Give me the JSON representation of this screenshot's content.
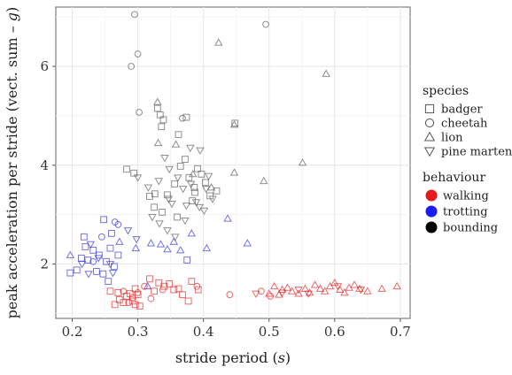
{
  "chart_data": {
    "type": "scatter",
    "xlabel_main": "stride period (",
    "xlabel_var": "s",
    "xlabel_end": ")",
    "ylabel_main": "peak acceleration per stride (vect. sum – ",
    "ylabel_var": "g",
    "ylabel_end": ")",
    "xlim": [
      0.175,
      0.715
    ],
    "ylim": [
      0.9,
      7.2
    ],
    "x_ticks": [
      0.2,
      0.3,
      0.4,
      0.5,
      0.6,
      0.7
    ],
    "x_tick_labels": [
      "0.2",
      "0.3",
      "0.4",
      "0.5",
      "0.6",
      "0.7"
    ],
    "y_ticks": [
      2,
      4,
      6
    ],
    "y_tick_labels": [
      "2",
      "4",
      "6"
    ],
    "grid": true,
    "legend_placement": "right",
    "legend": {
      "species_title": "species",
      "species": [
        {
          "name": "badger",
          "shape": "square"
        },
        {
          "name": "cheetah",
          "shape": "circle"
        },
        {
          "name": "lion",
          "shape": "triangle-up"
        },
        {
          "name": "pine marten",
          "shape": "triangle-down"
        }
      ],
      "behaviour_title": "behaviour",
      "behaviours": [
        {
          "name": "walking",
          "color": "#e41a1c"
        },
        {
          "name": "trotting",
          "color": "#1a1aff"
        },
        {
          "name": "bounding",
          "color": "#000000"
        }
      ]
    },
    "colors": {
      "walking": "#e41a1c",
      "trotting": "#2a2ad8",
      "bounding": "#555555"
    },
    "points": [
      {
        "x": 0.295,
        "y": 7.05,
        "s": "cheetah",
        "b": "bounding"
      },
      {
        "x": 0.3,
        "y": 6.25,
        "s": "cheetah",
        "b": "bounding"
      },
      {
        "x": 0.29,
        "y": 6.0,
        "s": "cheetah",
        "b": "bounding"
      },
      {
        "x": 0.302,
        "y": 5.07,
        "s": "cheetah",
        "b": "bounding"
      },
      {
        "x": 0.495,
        "y": 6.85,
        "s": "cheetah",
        "b": "bounding"
      },
      {
        "x": 0.368,
        "y": 4.95,
        "s": "cheetah",
        "b": "bounding"
      },
      {
        "x": 0.423,
        "y": 6.48,
        "s": "lion",
        "b": "bounding"
      },
      {
        "x": 0.587,
        "y": 5.85,
        "s": "lion",
        "b": "bounding"
      },
      {
        "x": 0.33,
        "y": 5.28,
        "s": "lion",
        "b": "bounding"
      },
      {
        "x": 0.331,
        "y": 4.45,
        "s": "lion",
        "b": "bounding"
      },
      {
        "x": 0.358,
        "y": 4.42,
        "s": "lion",
        "b": "bounding"
      },
      {
        "x": 0.447,
        "y": 4.82,
        "s": "lion",
        "b": "bounding"
      },
      {
        "x": 0.551,
        "y": 4.05,
        "s": "lion",
        "b": "bounding"
      },
      {
        "x": 0.492,
        "y": 3.68,
        "s": "lion",
        "b": "bounding"
      },
      {
        "x": 0.447,
        "y": 3.85,
        "s": "lion",
        "b": "bounding"
      },
      {
        "x": 0.384,
        "y": 3.82,
        "s": "lion",
        "b": "bounding"
      },
      {
        "x": 0.412,
        "y": 3.55,
        "s": "lion",
        "b": "bounding"
      },
      {
        "x": 0.33,
        "y": 5.15,
        "s": "badger",
        "b": "bounding"
      },
      {
        "x": 0.334,
        "y": 5.02,
        "s": "badger",
        "b": "bounding"
      },
      {
        "x": 0.339,
        "y": 4.92,
        "s": "badger",
        "b": "bounding"
      },
      {
        "x": 0.374,
        "y": 4.97,
        "s": "badger",
        "b": "bounding"
      },
      {
        "x": 0.448,
        "y": 4.85,
        "s": "badger",
        "b": "bounding"
      },
      {
        "x": 0.336,
        "y": 4.78,
        "s": "badger",
        "b": "bounding"
      },
      {
        "x": 0.362,
        "y": 4.62,
        "s": "badger",
        "b": "bounding"
      },
      {
        "x": 0.283,
        "y": 3.92,
        "s": "badger",
        "b": "bounding"
      },
      {
        "x": 0.294,
        "y": 3.84,
        "s": "badger",
        "b": "bounding"
      },
      {
        "x": 0.318,
        "y": 3.37,
        "s": "badger",
        "b": "bounding"
      },
      {
        "x": 0.326,
        "y": 3.42,
        "s": "badger",
        "b": "bounding"
      },
      {
        "x": 0.345,
        "y": 3.4,
        "s": "badger",
        "b": "bounding"
      },
      {
        "x": 0.356,
        "y": 3.62,
        "s": "badger",
        "b": "bounding"
      },
      {
        "x": 0.365,
        "y": 3.98,
        "s": "badger",
        "b": "bounding"
      },
      {
        "x": 0.372,
        "y": 4.12,
        "s": "badger",
        "b": "bounding"
      },
      {
        "x": 0.378,
        "y": 3.75,
        "s": "badger",
        "b": "bounding"
      },
      {
        "x": 0.386,
        "y": 3.55,
        "s": "badger",
        "b": "bounding"
      },
      {
        "x": 0.391,
        "y": 3.93,
        "s": "badger",
        "b": "bounding"
      },
      {
        "x": 0.397,
        "y": 3.82,
        "s": "badger",
        "b": "bounding"
      },
      {
        "x": 0.403,
        "y": 3.65,
        "s": "badger",
        "b": "bounding"
      },
      {
        "x": 0.41,
        "y": 3.38,
        "s": "badger",
        "b": "bounding"
      },
      {
        "x": 0.42,
        "y": 3.48,
        "s": "badger",
        "b": "bounding"
      },
      {
        "x": 0.325,
        "y": 3.15,
        "s": "badger",
        "b": "bounding"
      },
      {
        "x": 0.337,
        "y": 3.05,
        "s": "badger",
        "b": "bounding"
      },
      {
        "x": 0.383,
        "y": 3.28,
        "s": "badger",
        "b": "bounding"
      },
      {
        "x": 0.36,
        "y": 2.95,
        "s": "badger",
        "b": "bounding"
      },
      {
        "x": 0.387,
        "y": 3.45,
        "s": "badger",
        "b": "bounding"
      },
      {
        "x": 0.38,
        "y": 4.35,
        "s": "pine marten",
        "b": "bounding"
      },
      {
        "x": 0.395,
        "y": 4.3,
        "s": "pine marten",
        "b": "bounding"
      },
      {
        "x": 0.341,
        "y": 4.15,
        "s": "pine marten",
        "b": "bounding"
      },
      {
        "x": 0.3,
        "y": 3.75,
        "s": "pine marten",
        "b": "bounding"
      },
      {
        "x": 0.316,
        "y": 3.55,
        "s": "pine marten",
        "b": "bounding"
      },
      {
        "x": 0.332,
        "y": 3.68,
        "s": "pine marten",
        "b": "bounding"
      },
      {
        "x": 0.348,
        "y": 3.92,
        "s": "pine marten",
        "b": "bounding"
      },
      {
        "x": 0.352,
        "y": 3.22,
        "s": "pine marten",
        "b": "bounding"
      },
      {
        "x": 0.361,
        "y": 3.75,
        "s": "pine marten",
        "b": "bounding"
      },
      {
        "x": 0.369,
        "y": 3.52,
        "s": "pine marten",
        "b": "bounding"
      },
      {
        "x": 0.374,
        "y": 3.18,
        "s": "pine marten",
        "b": "bounding"
      },
      {
        "x": 0.381,
        "y": 3.62,
        "s": "pine marten",
        "b": "bounding"
      },
      {
        "x": 0.394,
        "y": 3.15,
        "s": "pine marten",
        "b": "bounding"
      },
      {
        "x": 0.401,
        "y": 3.08,
        "s": "pine marten",
        "b": "bounding"
      },
      {
        "x": 0.408,
        "y": 3.78,
        "s": "pine marten",
        "b": "bounding"
      },
      {
        "x": 0.414,
        "y": 3.32,
        "s": "pine marten",
        "b": "bounding"
      },
      {
        "x": 0.322,
        "y": 2.95,
        "s": "pine marten",
        "b": "bounding"
      },
      {
        "x": 0.333,
        "y": 2.82,
        "s": "pine marten",
        "b": "bounding"
      },
      {
        "x": 0.345,
        "y": 2.68,
        "s": "pine marten",
        "b": "bounding"
      },
      {
        "x": 0.357,
        "y": 2.55,
        "s": "pine marten",
        "b": "bounding"
      },
      {
        "x": 0.372,
        "y": 2.88,
        "s": "pine marten",
        "b": "bounding"
      },
      {
        "x": 0.347,
        "y": 3.32,
        "s": "pine marten",
        "b": "bounding"
      },
      {
        "x": 0.389,
        "y": 3.25,
        "s": "pine marten",
        "b": "bounding"
      },
      {
        "x": 0.404,
        "y": 3.52,
        "s": "pine marten",
        "b": "bounding"
      },
      {
        "x": 0.197,
        "y": 2.18,
        "s": "lion",
        "b": "trotting"
      },
      {
        "x": 0.272,
        "y": 2.45,
        "s": "lion",
        "b": "trotting"
      },
      {
        "x": 0.297,
        "y": 2.32,
        "s": "lion",
        "b": "trotting"
      },
      {
        "x": 0.32,
        "y": 2.42,
        "s": "lion",
        "b": "trotting"
      },
      {
        "x": 0.335,
        "y": 2.4,
        "s": "lion",
        "b": "trotting"
      },
      {
        "x": 0.345,
        "y": 2.3,
        "s": "lion",
        "b": "trotting"
      },
      {
        "x": 0.355,
        "y": 2.45,
        "s": "lion",
        "b": "trotting"
      },
      {
        "x": 0.365,
        "y": 2.28,
        "s": "lion",
        "b": "trotting"
      },
      {
        "x": 0.382,
        "y": 2.62,
        "s": "lion",
        "b": "trotting"
      },
      {
        "x": 0.405,
        "y": 2.32,
        "s": "lion",
        "b": "trotting"
      },
      {
        "x": 0.437,
        "y": 2.92,
        "s": "lion",
        "b": "trotting"
      },
      {
        "x": 0.467,
        "y": 2.42,
        "s": "lion",
        "b": "trotting"
      },
      {
        "x": 0.315,
        "y": 1.55,
        "s": "lion",
        "b": "trotting"
      },
      {
        "x": 0.218,
        "y": 2.55,
        "s": "badger",
        "b": "trotting"
      },
      {
        "x": 0.22,
        "y": 2.35,
        "s": "badger",
        "b": "trotting"
      },
      {
        "x": 0.214,
        "y": 2.12,
        "s": "badger",
        "b": "trotting"
      },
      {
        "x": 0.224,
        "y": 2.08,
        "s": "badger",
        "b": "trotting"
      },
      {
        "x": 0.232,
        "y": 2.28,
        "s": "badger",
        "b": "trotting"
      },
      {
        "x": 0.241,
        "y": 2.18,
        "s": "badger",
        "b": "trotting"
      },
      {
        "x": 0.248,
        "y": 2.9,
        "s": "badger",
        "b": "trotting"
      },
      {
        "x": 0.252,
        "y": 2.05,
        "s": "badger",
        "b": "trotting"
      },
      {
        "x": 0.258,
        "y": 2.32,
        "s": "badger",
        "b": "trotting"
      },
      {
        "x": 0.264,
        "y": 1.95,
        "s": "badger",
        "b": "trotting"
      },
      {
        "x": 0.27,
        "y": 2.18,
        "s": "badger",
        "b": "trotting"
      },
      {
        "x": 0.237,
        "y": 1.85,
        "s": "badger",
        "b": "trotting"
      },
      {
        "x": 0.247,
        "y": 1.8,
        "s": "badger",
        "b": "trotting"
      },
      {
        "x": 0.207,
        "y": 1.88,
        "s": "badger",
        "b": "trotting"
      },
      {
        "x": 0.197,
        "y": 1.82,
        "s": "badger",
        "b": "trotting"
      },
      {
        "x": 0.26,
        "y": 2.62,
        "s": "badger",
        "b": "trotting"
      },
      {
        "x": 0.255,
        "y": 1.65,
        "s": "badger",
        "b": "trotting"
      },
      {
        "x": 0.375,
        "y": 2.08,
        "s": "badger",
        "b": "trotting"
      },
      {
        "x": 0.265,
        "y": 2.85,
        "s": "cheetah",
        "b": "trotting"
      },
      {
        "x": 0.27,
        "y": 2.8,
        "s": "cheetah",
        "b": "trotting"
      },
      {
        "x": 0.245,
        "y": 2.55,
        "s": "cheetah",
        "b": "trotting"
      },
      {
        "x": 0.232,
        "y": 2.05,
        "s": "cheetah",
        "b": "trotting"
      },
      {
        "x": 0.228,
        "y": 2.4,
        "s": "pine marten",
        "b": "trotting"
      },
      {
        "x": 0.215,
        "y": 2.0,
        "s": "pine marten",
        "b": "trotting"
      },
      {
        "x": 0.24,
        "y": 2.12,
        "s": "pine marten",
        "b": "trotting"
      },
      {
        "x": 0.258,
        "y": 2.0,
        "s": "pine marten",
        "b": "trotting"
      },
      {
        "x": 0.285,
        "y": 2.68,
        "s": "pine marten",
        "b": "trotting"
      },
      {
        "x": 0.298,
        "y": 2.5,
        "s": "pine marten",
        "b": "trotting"
      },
      {
        "x": 0.225,
        "y": 1.8,
        "s": "pine marten",
        "b": "trotting"
      },
      {
        "x": 0.262,
        "y": 1.82,
        "s": "pine marten",
        "b": "trotting"
      },
      {
        "x": 0.258,
        "y": 1.45,
        "s": "badger",
        "b": "walking"
      },
      {
        "x": 0.265,
        "y": 1.18,
        "s": "badger",
        "b": "walking"
      },
      {
        "x": 0.272,
        "y": 1.28,
        "s": "badger",
        "b": "walking"
      },
      {
        "x": 0.278,
        "y": 1.22,
        "s": "badger",
        "b": "walking"
      },
      {
        "x": 0.283,
        "y": 1.35,
        "s": "badger",
        "b": "walking"
      },
      {
        "x": 0.288,
        "y": 1.4,
        "s": "badger",
        "b": "walking"
      },
      {
        "x": 0.292,
        "y": 1.25,
        "s": "badger",
        "b": "walking"
      },
      {
        "x": 0.296,
        "y": 1.18,
        "s": "badger",
        "b": "walking"
      },
      {
        "x": 0.3,
        "y": 1.38,
        "s": "badger",
        "b": "walking"
      },
      {
        "x": 0.296,
        "y": 1.5,
        "s": "badger",
        "b": "walking"
      },
      {
        "x": 0.27,
        "y": 1.42,
        "s": "badger",
        "b": "walking"
      },
      {
        "x": 0.318,
        "y": 1.7,
        "s": "badger",
        "b": "walking"
      },
      {
        "x": 0.325,
        "y": 1.45,
        "s": "badger",
        "b": "walking"
      },
      {
        "x": 0.332,
        "y": 1.62,
        "s": "badger",
        "b": "walking"
      },
      {
        "x": 0.34,
        "y": 1.55,
        "s": "badger",
        "b": "walking"
      },
      {
        "x": 0.348,
        "y": 1.6,
        "s": "badger",
        "b": "walking"
      },
      {
        "x": 0.355,
        "y": 1.48,
        "s": "badger",
        "b": "walking"
      },
      {
        "x": 0.362,
        "y": 1.5,
        "s": "badger",
        "b": "walking"
      },
      {
        "x": 0.368,
        "y": 1.38,
        "s": "badger",
        "b": "walking"
      },
      {
        "x": 0.377,
        "y": 1.25,
        "s": "badger",
        "b": "walking"
      },
      {
        "x": 0.382,
        "y": 1.65,
        "s": "badger",
        "b": "walking"
      },
      {
        "x": 0.392,
        "y": 1.48,
        "s": "badger",
        "b": "walking"
      },
      {
        "x": 0.303,
        "y": 1.15,
        "s": "badger",
        "b": "walking"
      },
      {
        "x": 0.278,
        "y": 1.45,
        "s": "cheetah",
        "b": "walking"
      },
      {
        "x": 0.286,
        "y": 1.22,
        "s": "cheetah",
        "b": "walking"
      },
      {
        "x": 0.292,
        "y": 1.32,
        "s": "cheetah",
        "b": "walking"
      },
      {
        "x": 0.3,
        "y": 1.42,
        "s": "cheetah",
        "b": "walking"
      },
      {
        "x": 0.31,
        "y": 1.55,
        "s": "cheetah",
        "b": "walking"
      },
      {
        "x": 0.32,
        "y": 1.3,
        "s": "cheetah",
        "b": "walking"
      },
      {
        "x": 0.338,
        "y": 1.48,
        "s": "cheetah",
        "b": "walking"
      },
      {
        "x": 0.39,
        "y": 1.55,
        "s": "cheetah",
        "b": "walking"
      },
      {
        "x": 0.44,
        "y": 1.38,
        "s": "cheetah",
        "b": "walking"
      },
      {
        "x": 0.488,
        "y": 1.45,
        "s": "cheetah",
        "b": "walking"
      },
      {
        "x": 0.5,
        "y": 1.4,
        "s": "lion",
        "b": "walking"
      },
      {
        "x": 0.508,
        "y": 1.55,
        "s": "lion",
        "b": "walking"
      },
      {
        "x": 0.515,
        "y": 1.38,
        "s": "lion",
        "b": "walking"
      },
      {
        "x": 0.52,
        "y": 1.48,
        "s": "lion",
        "b": "walking"
      },
      {
        "x": 0.528,
        "y": 1.52,
        "s": "lion",
        "b": "walking"
      },
      {
        "x": 0.535,
        "y": 1.45,
        "s": "lion",
        "b": "walking"
      },
      {
        "x": 0.545,
        "y": 1.4,
        "s": "lion",
        "b": "walking"
      },
      {
        "x": 0.555,
        "y": 1.5,
        "s": "lion",
        "b": "walking"
      },
      {
        "x": 0.562,
        "y": 1.42,
        "s": "lion",
        "b": "walking"
      },
      {
        "x": 0.57,
        "y": 1.58,
        "s": "lion",
        "b": "walking"
      },
      {
        "x": 0.578,
        "y": 1.5,
        "s": "lion",
        "b": "walking"
      },
      {
        "x": 0.585,
        "y": 1.45,
        "s": "lion",
        "b": "walking"
      },
      {
        "x": 0.593,
        "y": 1.55,
        "s": "lion",
        "b": "walking"
      },
      {
        "x": 0.6,
        "y": 1.62,
        "s": "lion",
        "b": "walking"
      },
      {
        "x": 0.608,
        "y": 1.48,
        "s": "lion",
        "b": "walking"
      },
      {
        "x": 0.615,
        "y": 1.42,
        "s": "lion",
        "b": "walking"
      },
      {
        "x": 0.622,
        "y": 1.52,
        "s": "lion",
        "b": "walking"
      },
      {
        "x": 0.63,
        "y": 1.58,
        "s": "lion",
        "b": "walking"
      },
      {
        "x": 0.638,
        "y": 1.5,
        "s": "lion",
        "b": "walking"
      },
      {
        "x": 0.65,
        "y": 1.45,
        "s": "lion",
        "b": "walking"
      },
      {
        "x": 0.672,
        "y": 1.5,
        "s": "lion",
        "b": "walking"
      },
      {
        "x": 0.695,
        "y": 1.55,
        "s": "lion",
        "b": "walking"
      },
      {
        "x": 0.502,
        "y": 1.35,
        "s": "cheetah",
        "b": "walking"
      },
      {
        "x": 0.545,
        "y": 1.48,
        "s": "pine marten",
        "b": "walking"
      },
      {
        "x": 0.56,
        "y": 1.4,
        "s": "pine marten",
        "b": "walking"
      },
      {
        "x": 0.605,
        "y": 1.55,
        "s": "pine marten",
        "b": "walking"
      },
      {
        "x": 0.64,
        "y": 1.48,
        "s": "pine marten",
        "b": "walking"
      },
      {
        "x": 0.52,
        "y": 1.42,
        "s": "pine marten",
        "b": "walking"
      },
      {
        "x": 0.48,
        "y": 1.4,
        "s": "pine marten",
        "b": "walking"
      }
    ]
  }
}
